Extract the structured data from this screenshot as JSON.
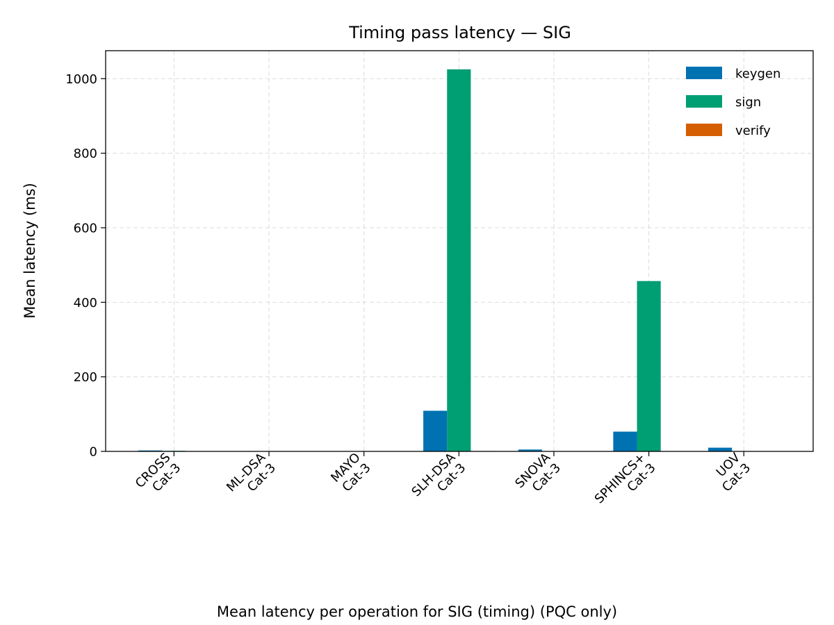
{
  "figure": {
    "caption": "Mean latency per operation for SIG (timing) (PQC only)"
  },
  "chart_data": {
    "type": "bar",
    "title": "Timing pass latency — SIG",
    "xlabel": "",
    "ylabel": "Mean latency (ms)",
    "categories": [
      [
        "CROSS",
        "Cat-3"
      ],
      [
        "ML-DSA",
        "Cat-3"
      ],
      [
        "MAYO",
        "Cat-3"
      ],
      [
        "SLH-DSA",
        "Cat-3"
      ],
      [
        "SNOVA",
        "Cat-3"
      ],
      [
        "SPHINCS+",
        "Cat-3"
      ],
      [
        "UOV",
        "Cat-3"
      ]
    ],
    "series": [
      {
        "name": "keygen",
        "color": "#0072b2",
        "values": [
          2.5,
          0.2,
          0.3,
          109,
          5,
          53,
          10
        ]
      },
      {
        "name": "sign",
        "color": "#009e73",
        "values": [
          1.5,
          0.3,
          0.5,
          1025,
          0.8,
          457,
          0.3
        ]
      },
      {
        "name": "verify",
        "color": "#d55e00",
        "values": [
          0.8,
          0.1,
          0.2,
          1.0,
          0.6,
          0.8,
          0.2
        ]
      }
    ],
    "ylim": [
      0,
      1075
    ],
    "yticks": [
      0,
      200,
      400,
      600,
      800,
      1000
    ],
    "grid": true,
    "legend_position": "top-right"
  }
}
